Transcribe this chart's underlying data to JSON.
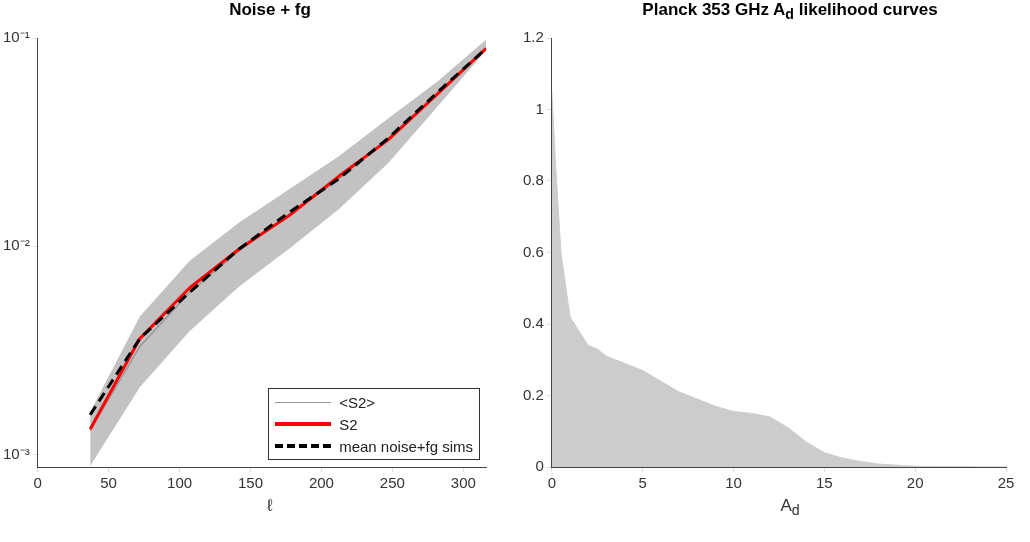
{
  "chart_data": [
    {
      "type": "line",
      "title": "Noise + fg",
      "xlabel": "ℓ",
      "x": [
        37,
        72,
        107,
        142,
        177,
        212,
        247,
        282,
        316
      ],
      "xlim": [
        0,
        316
      ],
      "xticks": [
        0,
        50,
        100,
        150,
        200,
        250,
        300
      ],
      "ylim": [
        0.00087,
        0.1
      ],
      "yticks": [
        {
          "value": 0.001,
          "label": "10⁻³"
        },
        {
          "value": 0.01,
          "label": "10⁻²"
        },
        {
          "value": 0.1,
          "label": "10⁻¹"
        }
      ],
      "log": "y",
      "grid": false,
      "legend": "bottom right",
      "marker": "none",
      "series": [
        {
          "name": "<S2>",
          "color": "#999999",
          "line_style": "solid",
          "values": [
            0.0013,
            0.0033,
            0.006,
            0.0095,
            0.014,
            0.021,
            0.033,
            0.054,
            0.09
          ],
          "lower": [
            0.00088,
            0.0021,
            0.0039,
            0.0064,
            0.0097,
            0.015,
            0.025,
            0.047,
            0.087
          ],
          "upper": [
            0.0016,
            0.0046,
            0.0085,
            0.013,
            0.0187,
            0.027,
            0.041,
            0.062,
            0.098
          ]
        },
        {
          "name": "S2",
          "color": "#ff0000",
          "line_style": "solid",
          "values": [
            0.00132,
            0.0036,
            0.0063,
            0.0097,
            0.014,
            0.0216,
            0.0324,
            0.054,
            0.089
          ]
        },
        {
          "name": "mean noise+fg sims",
          "color": "#000000",
          "line_style": "dashed",
          "values": [
            0.00155,
            0.0036,
            0.006,
            0.0097,
            0.0145,
            0.021,
            0.033,
            0.055,
            0.089
          ]
        }
      ]
    },
    {
      "type": "area",
      "title": "Planck 353 GHz A$_{d}$ likelihood curves",
      "xlabel": "A$_{d}$",
      "xlim": [
        0,
        25
      ],
      "xticks": [
        0,
        5,
        10,
        15,
        20,
        25
      ],
      "ylim": [
        0,
        1.2
      ],
      "yticks": [
        0,
        0.2,
        0.4,
        0.6,
        0.8,
        1,
        1.2
      ],
      "grid": false,
      "marker": "none",
      "series": [
        {
          "color": "#cccccc",
          "x": [
            0,
            0.2,
            0.5,
            1,
            1.5,
            2,
            2.5,
            3,
            4,
            5,
            6,
            7,
            8,
            9,
            10,
            11,
            12,
            13,
            14,
            15,
            16,
            17,
            18,
            20,
            25
          ],
          "values": [
            1.05,
            0.85,
            0.6,
            0.42,
            0.38,
            0.34,
            0.33,
            0.31,
            0.29,
            0.27,
            0.24,
            0.21,
            0.19,
            0.17,
            0.155,
            0.15,
            0.14,
            0.11,
            0.07,
            0.04,
            0.025,
            0.015,
            0.008,
            0.002,
            0
          ]
        }
      ]
    }
  ]
}
